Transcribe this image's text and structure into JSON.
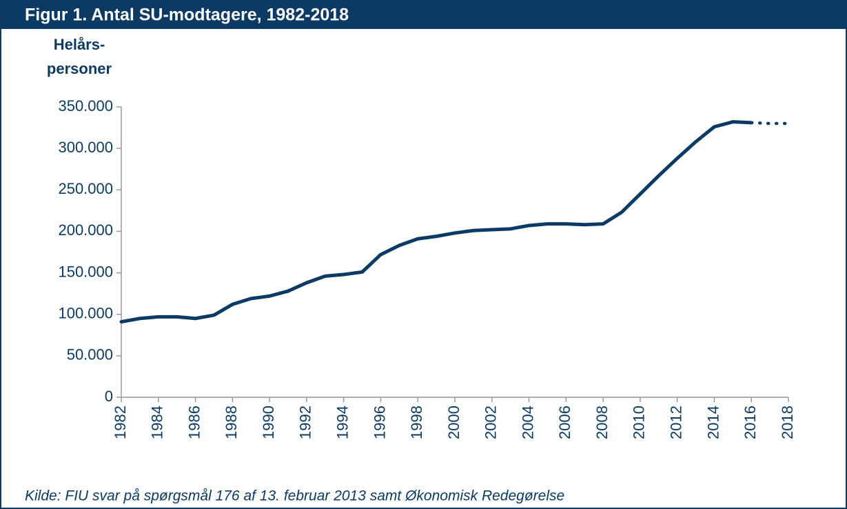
{
  "chart_data": {
    "type": "line",
    "title": "Figur 1. Antal SU-modtagere, 1982-2018",
    "ylabel": [
      "Helårs-",
      "personer"
    ],
    "source": "Kilde: FIU svar på spørgsmål 176 af 13. februar 2013 samt Økonomisk Redegørelse",
    "x": [
      1982,
      1983,
      1984,
      1985,
      1986,
      1987,
      1988,
      1989,
      1990,
      1991,
      1992,
      1993,
      1994,
      1995,
      1996,
      1997,
      1998,
      1999,
      2000,
      2001,
      2002,
      2003,
      2004,
      2005,
      2006,
      2007,
      2008,
      2009,
      2010,
      2011,
      2012,
      2013,
      2014,
      2015,
      2016,
      2017,
      2018
    ],
    "series": [
      {
        "color": "#0b3a64",
        "style": "solid",
        "values": [
          91000,
          95000,
          97000,
          97000,
          95000,
          99000,
          112000,
          119000,
          122000,
          128000,
          138000,
          146000,
          148000,
          151000,
          172000,
          183000,
          191000,
          194000,
          198000,
          201000,
          202000,
          203000,
          207000,
          209000,
          209000,
          208000,
          209000,
          223000,
          245000,
          267000,
          288000,
          308000,
          326000,
          332000,
          331000,
          null,
          null
        ]
      },
      {
        "color": "#0b3a64",
        "style": "dotted",
        "values": [
          null,
          null,
          null,
          null,
          null,
          null,
          null,
          null,
          null,
          null,
          null,
          null,
          null,
          null,
          null,
          null,
          null,
          null,
          null,
          null,
          null,
          null,
          null,
          null,
          null,
          null,
          null,
          null,
          null,
          null,
          null,
          null,
          null,
          null,
          331000,
          330000,
          330000
        ]
      }
    ],
    "xlim": [
      1982,
      2018
    ],
    "xticks": [
      1982,
      1984,
      1986,
      1988,
      1990,
      1992,
      1994,
      1996,
      1998,
      2000,
      2002,
      2004,
      2006,
      2008,
      2010,
      2012,
      2014,
      2016,
      2018
    ],
    "ylim": [
      0,
      350000
    ],
    "yticks": [
      0,
      {
        "value": 50000,
        "label": "50.000"
      },
      {
        "value": 100000,
        "label": "100.000"
      },
      {
        "value": 150000,
        "label": "150.000"
      },
      {
        "value": 200000,
        "label": "200.000"
      },
      {
        "value": 250000,
        "label": "250.000"
      },
      {
        "value": 300000,
        "label": "300.000"
      },
      {
        "value": 350000,
        "label": "350.000"
      }
    ],
    "grid": false
  }
}
